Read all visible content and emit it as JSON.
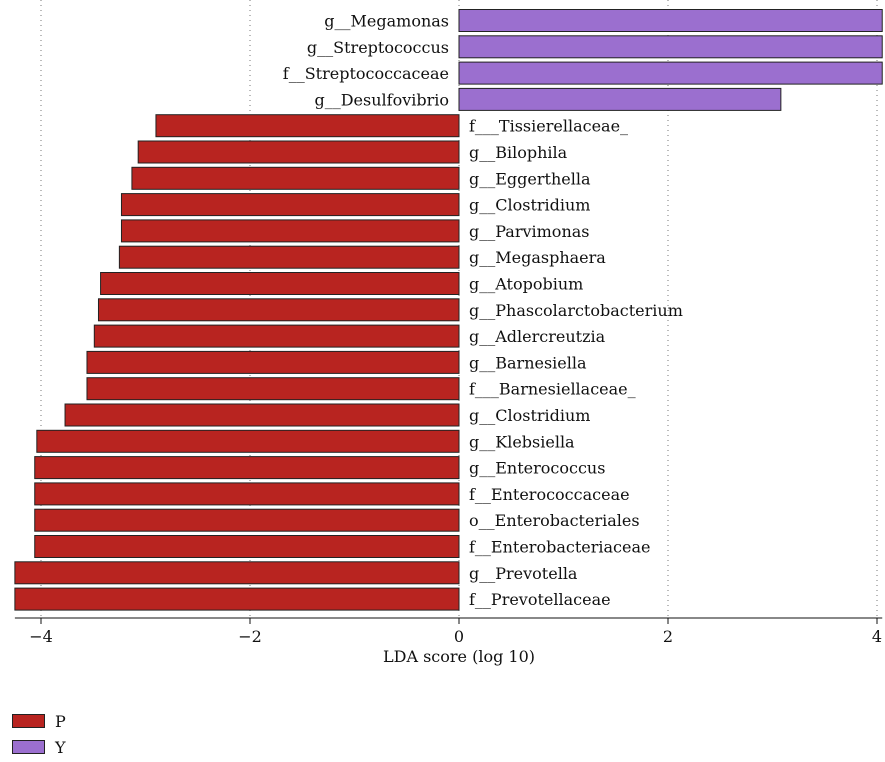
{
  "chart_data": {
    "type": "bar",
    "orientation": "horizontal",
    "xlabel": "LDA score (log 10)",
    "xlim": [
      -4.25,
      4.05
    ],
    "xticks": [
      -4,
      -2,
      0,
      2,
      4
    ],
    "tick_labels": [
      "−4",
      "−2",
      "0",
      "2",
      "4"
    ],
    "grid": "vertical dotted",
    "legend_position": "bottom-left",
    "legend": [
      {
        "key": "P",
        "label": "P",
        "color": "#b82420"
      },
      {
        "key": "Y",
        "label": "Y",
        "color": "#9b6fcf"
      }
    ],
    "categories": [
      "g__Megamonas",
      "g__Streptococcus",
      "f__Streptococcaceae",
      "g__Desulfovibrio",
      "f___Tissierellaceae_",
      "g__Bilophila",
      "g__Eggerthella",
      "g__Clostridium",
      "g__Parvimonas",
      "g__Megasphaera",
      "g__Atopobium",
      "g__Phascolarctobacterium",
      "g__Adlercreutzia",
      "g__Barnesiella",
      "f___Barnesiellaceae_",
      "g__Clostridium",
      "g__Klebsiella",
      "g__Enterococcus",
      "f__Enterococcaceae",
      "o__Enterobacteriales",
      "f__Enterobacteriaceae",
      "g__Prevotella",
      "f__Prevotellaceae"
    ],
    "values": [
      4.05,
      4.05,
      4.05,
      3.08,
      -2.9,
      -3.07,
      -3.13,
      -3.23,
      -3.23,
      -3.25,
      -3.43,
      -3.45,
      -3.49,
      -3.56,
      -3.56,
      -3.77,
      -4.04,
      -4.06,
      -4.06,
      -4.06,
      -4.06,
      -4.25,
      -4.25
    ],
    "groups": [
      "Y",
      "Y",
      "Y",
      "Y",
      "P",
      "P",
      "P",
      "P",
      "P",
      "P",
      "P",
      "P",
      "P",
      "P",
      "P",
      "P",
      "P",
      "P",
      "P",
      "P",
      "P",
      "P",
      "P"
    ]
  }
}
